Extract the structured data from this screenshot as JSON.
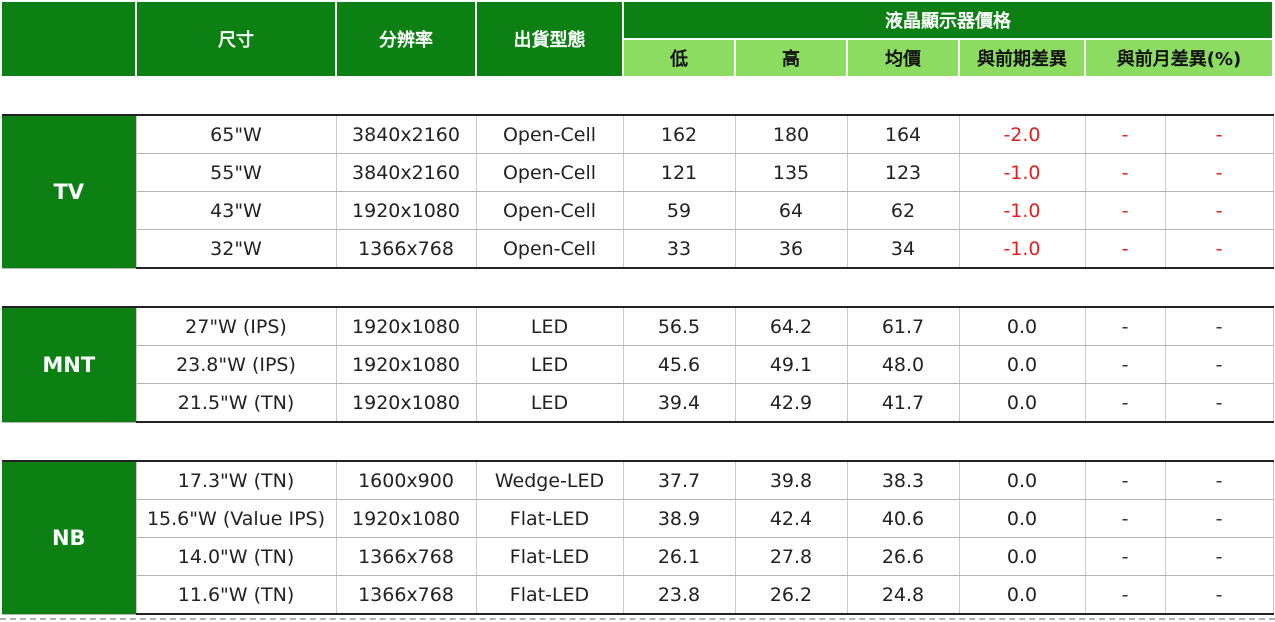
{
  "header": {
    "size": "尺寸",
    "resolution": "分辨率",
    "shipping_type": "出貨型態",
    "price_group": "液晶顯示器價格",
    "low": "低",
    "high": "高",
    "avg": "均價",
    "vs_prev_period": "與前期差異",
    "vs_prev_month_pct": "與前月差異(%)"
  },
  "groups": [
    {
      "category": "TV",
      "rows": [
        {
          "size": "65\"W",
          "res": "3840x2160",
          "type": "Open-Cell",
          "low": "162",
          "high": "180",
          "avg": "164",
          "diff": "-2.0",
          "m1": "-",
          "m2": "-"
        },
        {
          "size": "55\"W",
          "res": "3840x2160",
          "type": "Open-Cell",
          "low": "121",
          "high": "135",
          "avg": "123",
          "diff": "-1.0",
          "m1": "-",
          "m2": "-"
        },
        {
          "size": "43\"W",
          "res": "1920x1080",
          "type": "Open-Cell",
          "low": "59",
          "high": "64",
          "avg": "62",
          "diff": "-1.0",
          "m1": "-",
          "m2": "-"
        },
        {
          "size": "32\"W",
          "res": "1366x768",
          "type": "Open-Cell",
          "low": "33",
          "high": "36",
          "avg": "34",
          "diff": "-1.0",
          "m1": "-",
          "m2": "-"
        }
      ]
    },
    {
      "category": "MNT",
      "rows": [
        {
          "size": "27\"W (IPS)",
          "res": "1920x1080",
          "type": "LED",
          "low": "56.5",
          "high": "64.2",
          "avg": "61.7",
          "diff": "0.0",
          "m1": "-",
          "m2": "-"
        },
        {
          "size": "23.8\"W (IPS)",
          "res": "1920x1080",
          "type": "LED",
          "low": "45.6",
          "high": "49.1",
          "avg": "48.0",
          "diff": "0.0",
          "m1": "-",
          "m2": "-"
        },
        {
          "size": "21.5\"W (TN)",
          "res": "1920x1080",
          "type": "LED",
          "low": "39.4",
          "high": "42.9",
          "avg": "41.7",
          "diff": "0.0",
          "m1": "-",
          "m2": "-"
        }
      ]
    },
    {
      "category": "NB",
      "rows": [
        {
          "size": "17.3\"W (TN)",
          "res": "1600x900",
          "type": "Wedge-LED",
          "low": "37.7",
          "high": "39.8",
          "avg": "38.3",
          "diff": "0.0",
          "m1": "-",
          "m2": "-"
        },
        {
          "size": "15.6\"W (Value IPS)",
          "res": "1920x1080",
          "type": "Flat-LED",
          "low": "38.9",
          "high": "42.4",
          "avg": "40.6",
          "diff": "0.0",
          "m1": "-",
          "m2": "-"
        },
        {
          "size": "14.0\"W (TN)",
          "res": "1366x768",
          "type": "Flat-LED",
          "low": "26.1",
          "high": "27.8",
          "avg": "26.6",
          "diff": "0.0",
          "m1": "-",
          "m2": "-"
        },
        {
          "size": "11.6\"W (TN)",
          "res": "1366x768",
          "type": "Flat-LED",
          "low": "23.8",
          "high": "26.2",
          "avg": "24.8",
          "diff": "0.0",
          "m1": "-",
          "m2": "-"
        }
      ]
    }
  ],
  "colors": {
    "header_green": "#0d8013",
    "subheader_green": "#8cdc62",
    "negative_red": "#e02020"
  }
}
